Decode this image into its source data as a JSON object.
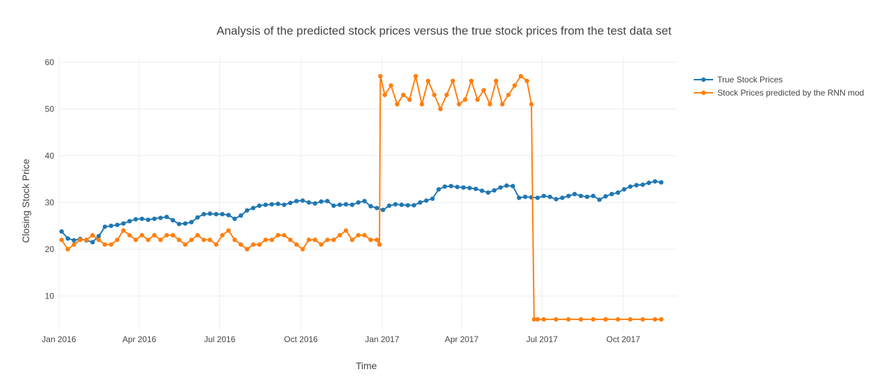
{
  "chart_data": {
    "type": "line",
    "title": "Analysis of the predicted stock prices versus the true stock prices from the test data set",
    "xlabel": "Time",
    "ylabel": "Closing Stock Price",
    "x_range": [
      "2016-01-01",
      "2017-12-01"
    ],
    "ylim": [
      2.5,
      61
    ],
    "x_ticks": [
      {
        "date": "2016-01-01",
        "label": "Jan 2016"
      },
      {
        "date": "2016-04-01",
        "label": "Apr 2016"
      },
      {
        "date": "2016-07-01",
        "label": "Jul 2016"
      },
      {
        "date": "2016-10-01",
        "label": "Oct 2016"
      },
      {
        "date": "2017-01-01",
        "label": "Jan 2017"
      },
      {
        "date": "2017-04-01",
        "label": "Apr 2017"
      },
      {
        "date": "2017-07-01",
        "label": "Jul 2017"
      },
      {
        "date": "2017-10-01",
        "label": "Oct 2017"
      }
    ],
    "y_ticks": [
      10,
      20,
      30,
      40,
      50,
      60
    ],
    "grid": true,
    "legend_position": "top-right",
    "series": [
      {
        "name": "True Stock Prices",
        "color": "#1f77b4",
        "x": [
          "2016-01-04",
          "2016-01-11",
          "2016-01-18",
          "2016-01-25",
          "2016-02-01",
          "2016-02-08",
          "2016-02-15",
          "2016-02-22",
          "2016-02-29",
          "2016-03-07",
          "2016-03-14",
          "2016-03-21",
          "2016-03-28",
          "2016-04-04",
          "2016-04-11",
          "2016-04-18",
          "2016-04-25",
          "2016-05-02",
          "2016-05-09",
          "2016-05-16",
          "2016-05-23",
          "2016-05-30",
          "2016-06-06",
          "2016-06-13",
          "2016-06-20",
          "2016-06-27",
          "2016-07-04",
          "2016-07-11",
          "2016-07-18",
          "2016-07-25",
          "2016-08-01",
          "2016-08-08",
          "2016-08-15",
          "2016-08-22",
          "2016-08-29",
          "2016-09-05",
          "2016-09-12",
          "2016-09-19",
          "2016-09-26",
          "2016-10-03",
          "2016-10-10",
          "2016-10-17",
          "2016-10-24",
          "2016-10-31",
          "2016-11-07",
          "2016-11-14",
          "2016-11-21",
          "2016-11-28",
          "2016-12-05",
          "2016-12-12",
          "2016-12-19",
          "2016-12-26",
          "2017-01-02",
          "2017-01-09",
          "2017-01-16",
          "2017-01-23",
          "2017-01-30",
          "2017-02-06",
          "2017-02-13",
          "2017-02-20",
          "2017-02-27",
          "2017-03-06",
          "2017-03-13",
          "2017-03-20",
          "2017-03-27",
          "2017-04-03",
          "2017-04-10",
          "2017-04-17",
          "2017-04-24",
          "2017-05-01",
          "2017-05-08",
          "2017-05-15",
          "2017-05-22",
          "2017-05-29",
          "2017-06-05",
          "2017-06-12",
          "2017-06-19",
          "2017-06-26",
          "2017-07-03",
          "2017-07-10",
          "2017-07-17",
          "2017-07-24",
          "2017-07-31",
          "2017-08-07",
          "2017-08-14",
          "2017-08-21",
          "2017-08-28",
          "2017-09-04",
          "2017-09-11",
          "2017-09-18",
          "2017-09-25",
          "2017-10-02",
          "2017-10-09",
          "2017-10-16",
          "2017-10-23",
          "2017-10-30",
          "2017-11-06",
          "2017-11-13"
        ],
        "values": [
          23.8,
          22.3,
          21.9,
          22.2,
          21.9,
          21.5,
          22.8,
          24.8,
          25.0,
          25.2,
          25.5,
          26.0,
          26.4,
          26.5,
          26.3,
          26.5,
          26.7,
          26.9,
          26.2,
          25.4,
          25.5,
          25.8,
          26.8,
          27.5,
          27.6,
          27.5,
          27.5,
          27.3,
          26.5,
          27.2,
          28.3,
          28.8,
          29.3,
          29.5,
          29.6,
          29.7,
          29.5,
          29.9,
          30.3,
          30.4,
          30.0,
          29.8,
          30.2,
          30.3,
          29.3,
          29.5,
          29.6,
          29.5,
          30.0,
          30.3,
          29.2,
          28.8,
          28.4,
          29.3,
          29.6,
          29.5,
          29.4,
          29.4,
          30.0,
          30.4,
          30.8,
          32.8,
          33.4,
          33.5,
          33.3,
          33.2,
          33.1,
          32.9,
          32.5,
          32.1,
          32.6,
          33.2,
          33.6,
          33.5,
          31.0,
          31.2,
          31.1,
          31.0,
          31.4,
          31.2,
          30.7,
          31.0,
          31.4,
          31.8,
          31.4,
          31.2,
          31.4,
          30.6,
          31.3,
          31.8,
          32.1,
          32.8,
          33.4,
          33.7,
          33.8,
          34.2,
          34.5,
          34.3
        ]
      },
      {
        "name": "Stock Prices predicted by the RNN mod",
        "color": "#ff7f0e",
        "x": [
          "2016-01-04",
          "2016-01-11",
          "2016-01-18",
          "2016-01-25",
          "2016-02-01",
          "2016-02-08",
          "2016-02-15",
          "2016-02-22",
          "2016-02-29",
          "2016-03-07",
          "2016-03-14",
          "2016-03-21",
          "2016-03-28",
          "2016-04-04",
          "2016-04-11",
          "2016-04-18",
          "2016-04-25",
          "2016-05-02",
          "2016-05-09",
          "2016-05-16",
          "2016-05-23",
          "2016-05-30",
          "2016-06-06",
          "2016-06-13",
          "2016-06-20",
          "2016-06-27",
          "2016-07-04",
          "2016-07-11",
          "2016-07-18",
          "2016-07-25",
          "2016-08-01",
          "2016-08-08",
          "2016-08-15",
          "2016-08-22",
          "2016-08-29",
          "2016-09-05",
          "2016-09-12",
          "2016-09-19",
          "2016-09-26",
          "2016-10-03",
          "2016-10-10",
          "2016-10-17",
          "2016-10-24",
          "2016-10-31",
          "2016-11-07",
          "2016-11-14",
          "2016-11-21",
          "2016-11-28",
          "2016-12-05",
          "2016-12-12",
          "2016-12-19",
          "2016-12-26",
          "2016-12-29",
          "2016-12-30",
          "2017-01-04",
          "2017-01-11",
          "2017-01-18",
          "2017-01-25",
          "2017-02-01",
          "2017-02-08",
          "2017-02-15",
          "2017-02-22",
          "2017-03-01",
          "2017-03-08",
          "2017-03-15",
          "2017-03-22",
          "2017-03-29",
          "2017-04-05",
          "2017-04-12",
          "2017-04-19",
          "2017-04-26",
          "2017-05-03",
          "2017-05-10",
          "2017-05-17",
          "2017-05-24",
          "2017-05-31",
          "2017-06-07",
          "2017-06-14",
          "2017-06-19",
          "2017-06-22",
          "2017-06-26",
          "2017-07-03",
          "2017-07-17",
          "2017-07-31",
          "2017-08-14",
          "2017-08-28",
          "2017-09-11",
          "2017-09-25",
          "2017-10-09",
          "2017-10-23",
          "2017-11-06",
          "2017-11-13"
        ],
        "values": [
          22,
          20,
          21,
          22,
          22,
          23,
          22,
          21,
          21,
          22,
          24,
          23,
          22,
          23,
          22,
          23,
          22,
          23,
          23,
          22,
          21,
          22,
          23,
          22,
          22,
          21,
          23,
          24,
          22,
          21,
          20,
          21,
          21,
          22,
          22,
          23,
          23,
          22,
          21,
          20,
          22,
          22,
          21,
          22,
          22,
          23,
          24,
          22,
          23,
          23,
          22,
          22,
          21,
          57,
          53,
          55,
          51,
          53,
          52,
          57,
          51,
          56,
          53,
          50,
          53,
          56,
          51,
          52,
          56,
          52,
          54,
          51,
          56,
          51,
          53,
          55,
          57,
          56,
          51,
          5,
          5,
          5,
          5,
          5,
          5,
          5,
          5,
          5,
          5,
          5,
          5,
          5
        ]
      }
    ]
  }
}
